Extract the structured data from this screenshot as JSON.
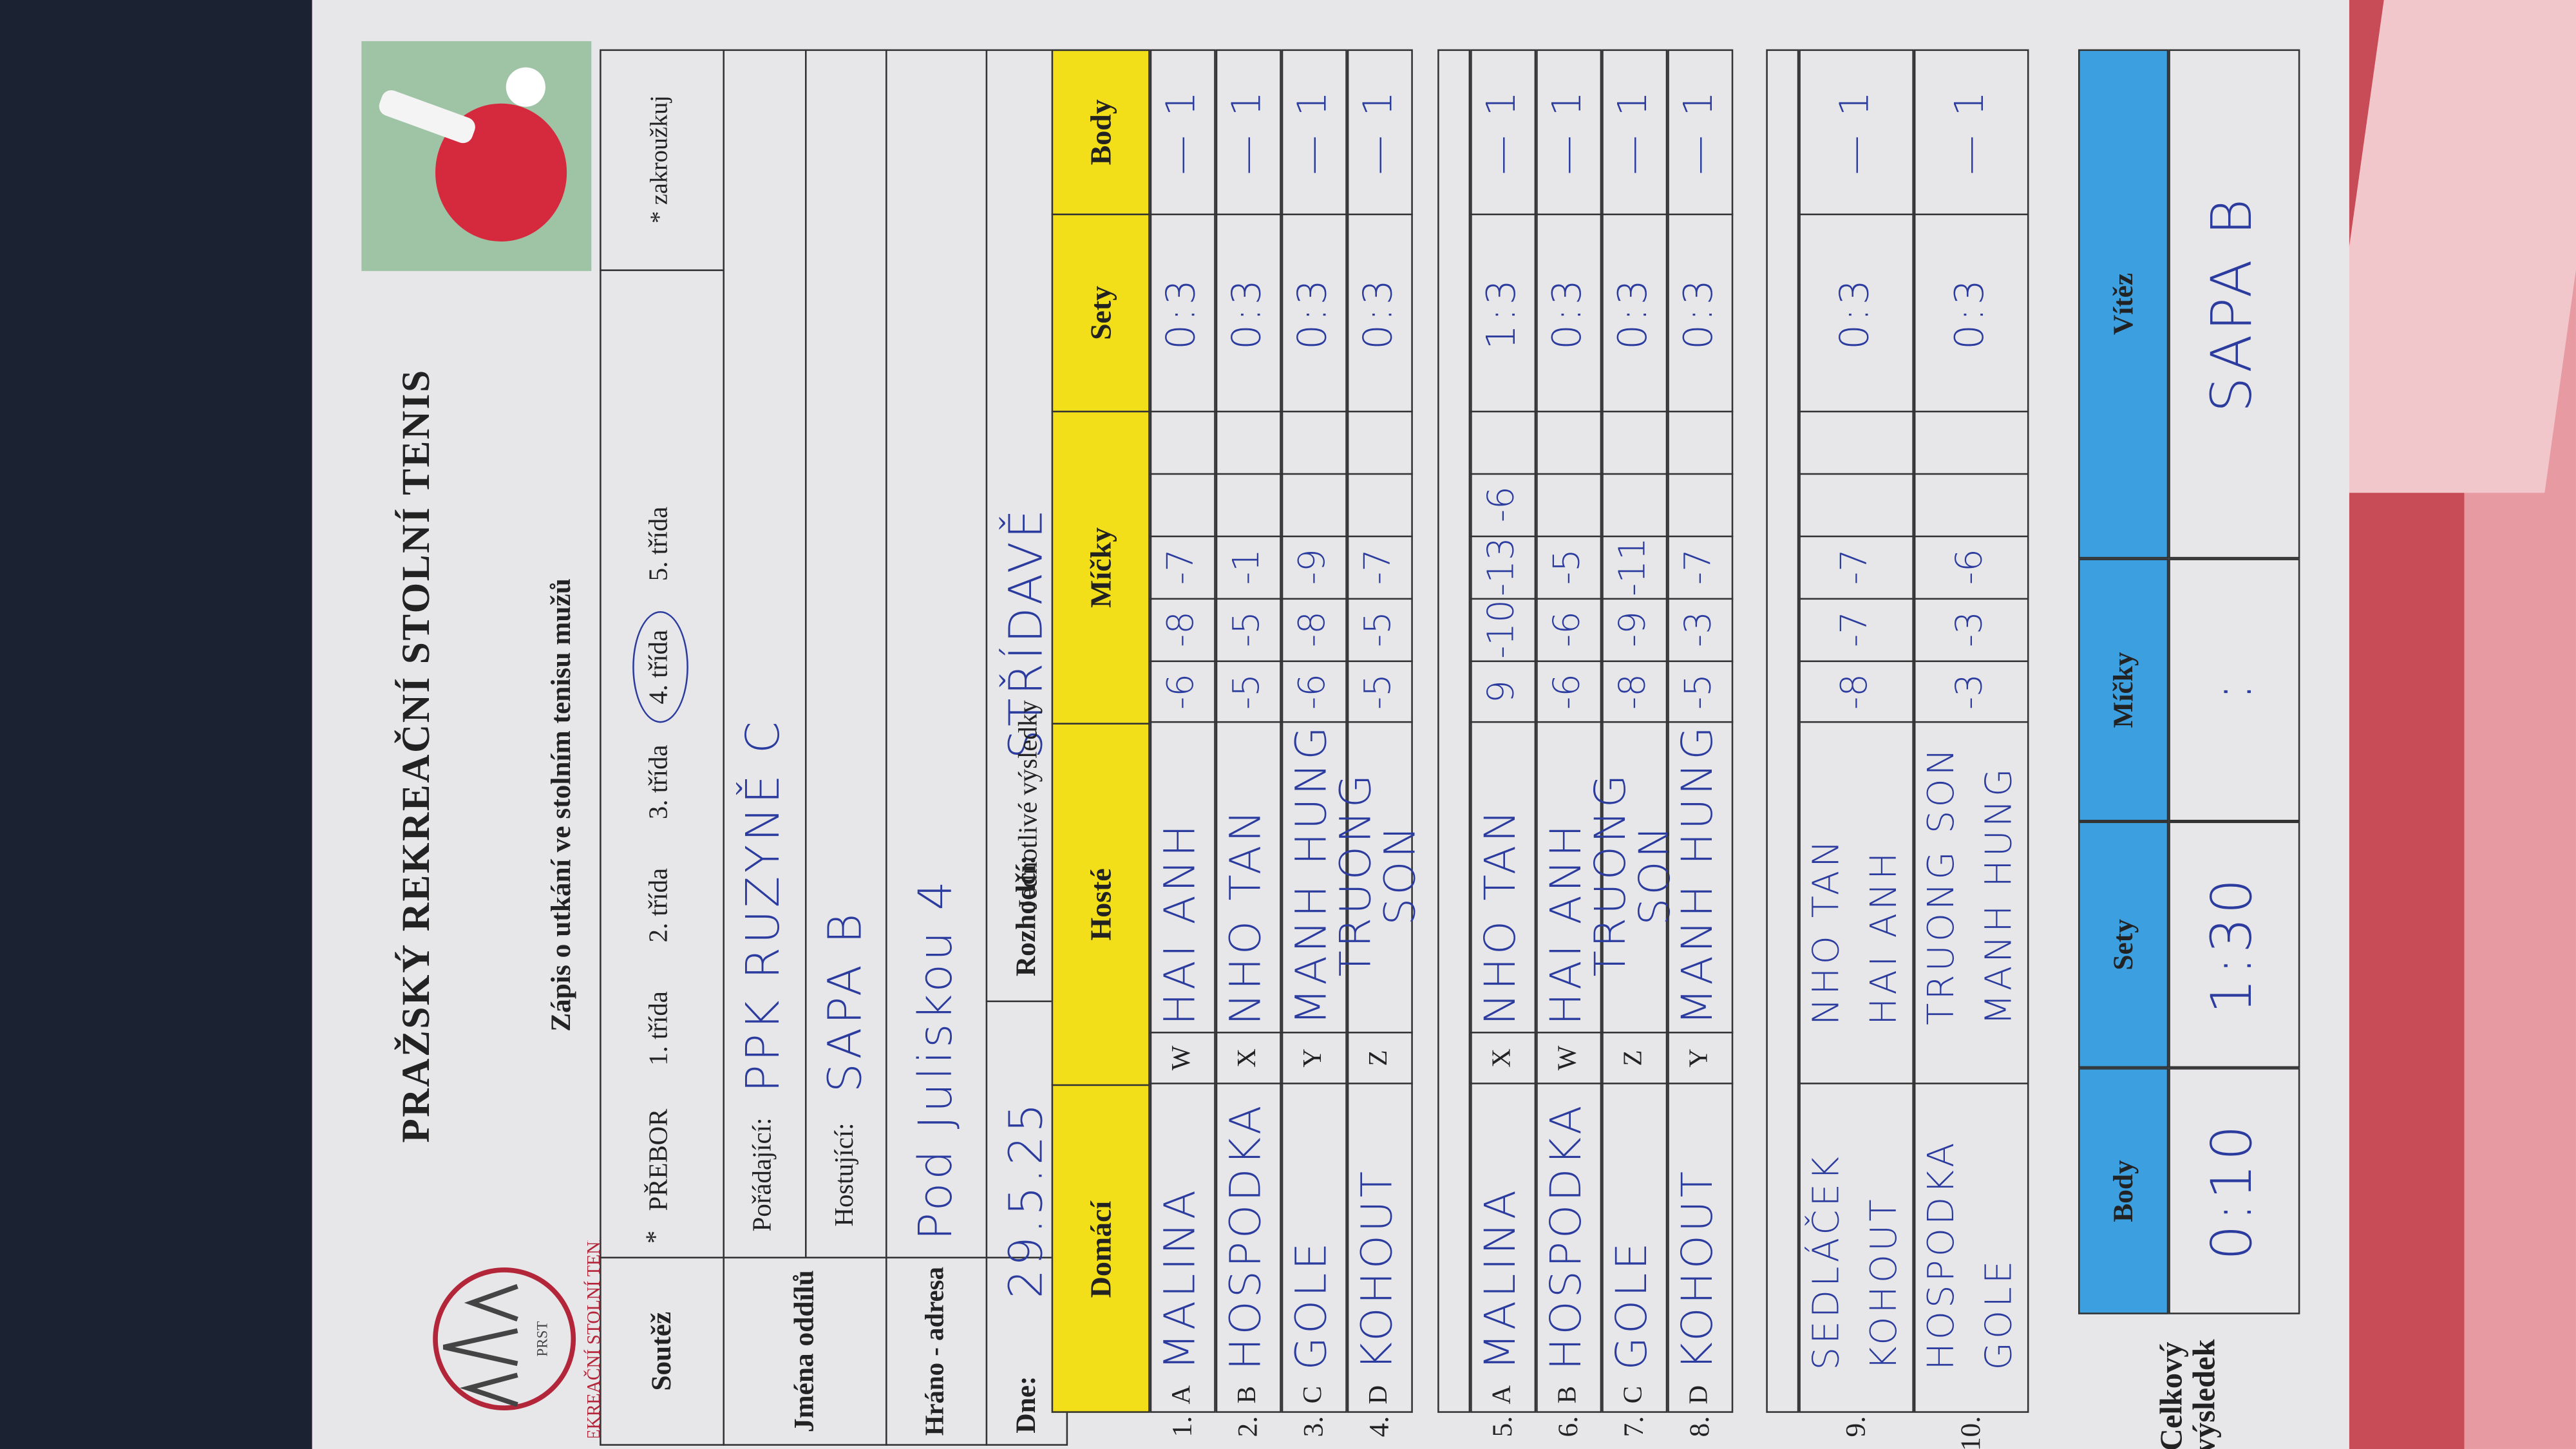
{
  "header": {
    "logo_text": "REKREAČNÍ STOLNÍ TENIS",
    "logo_sub": "PRST",
    "title": "PRAŽSKÝ REKREAČNÍ STOLNÍ TENIS",
    "subtitle": "Zápis o utkání ve stolním tenisu mužů"
  },
  "form": {
    "competition_label": "Soutěž",
    "marker": "*",
    "classes": [
      "PŘEBOR",
      "1. třída",
      "2. třída",
      "3. třída",
      "4. třída",
      "5. třída"
    ],
    "circled": 4,
    "note": "* zakroužkuj",
    "clubs_label": "Jména oddílů",
    "home_label": "Pořádající:",
    "home_club": "PPK RUZYNĚ C",
    "guest_label": "Hostující:",
    "guest_club": "SAPA B",
    "venue_label": "Hráno - adresa",
    "venue": "Pod Juliskou 4",
    "date_label": "Dne:",
    "date": "29.5.25",
    "referee_label": "Rozhodčí:",
    "referee": "STŘÍDAVĚ"
  },
  "results": {
    "title": "Jednotlivé výsledky",
    "columns": [
      "Domácí",
      "Hosté",
      "Míčky",
      "Sety",
      "Body"
    ],
    "blocks": [
      [
        {
          "no": "1.",
          "home_letter": "A",
          "home": [
            "MALINA"
          ],
          "guest_letter": "W",
          "guest": [
            "HAI ANH"
          ],
          "balls": [
            "-6",
            "-8",
            "-7"
          ],
          "sets": "0:3",
          "points": "— 1"
        },
        {
          "no": "2.",
          "home_letter": "B",
          "home": [
            "HOSPODKA"
          ],
          "guest_letter": "X",
          "guest": [
            "NHO TAN"
          ],
          "balls": [
            "-5",
            "-5",
            "-1"
          ],
          "sets": "0:3",
          "points": "— 1"
        },
        {
          "no": "3.",
          "home_letter": "C",
          "home": [
            "GOLE"
          ],
          "guest_letter": "Y",
          "guest": [
            "MANH HUNG"
          ],
          "balls": [
            "-6",
            "-8",
            "-9"
          ],
          "sets": "0:3",
          "points": "— 1"
        },
        {
          "no": "4.",
          "home_letter": "D",
          "home": [
            "KOHOUT"
          ],
          "guest_letter": "Z",
          "guest": [
            "TRUONG SON"
          ],
          "balls": [
            "-5",
            "-5",
            "-7"
          ],
          "sets": "0:3",
          "points": "— 1"
        }
      ],
      [
        {
          "no": "5.",
          "home_letter": "A",
          "home": [
            "MALINA"
          ],
          "guest_letter": "X",
          "guest": [
            "NHO TAN"
          ],
          "balls": [
            "9",
            "-10",
            "-13",
            "-6"
          ],
          "sets": "1:3",
          "points": "— 1"
        },
        {
          "no": "6.",
          "home_letter": "B",
          "home": [
            "HOSPODKA"
          ],
          "guest_letter": "W",
          "guest": [
            "HAI ANH"
          ],
          "balls": [
            "-6",
            "-6",
            "-5"
          ],
          "sets": "0:3",
          "points": "— 1"
        },
        {
          "no": "7.",
          "home_letter": "C",
          "home": [
            "GOLE"
          ],
          "guest_letter": "Z",
          "guest": [
            "TRUONG SON"
          ],
          "balls": [
            "-8",
            "-9",
            "-11"
          ],
          "sets": "0:3",
          "points": "— 1"
        },
        {
          "no": "8.",
          "home_letter": "D",
          "home": [
            "KOHOUT"
          ],
          "guest_letter": "Y",
          "guest": [
            "MANH HUNG"
          ],
          "balls": [
            "-5",
            "-3",
            "-7"
          ],
          "sets": "0:3",
          "points": "— 1"
        }
      ],
      [
        {
          "no": "9.",
          "home": [
            "SEDLÁČEK",
            "KOHOUT"
          ],
          "guest": [
            "NHO TAN",
            "HAI ANH"
          ],
          "balls": [
            "-8",
            "-7",
            "-7"
          ],
          "sets": "0:3",
          "points": "— 1"
        },
        {
          "no": "10.",
          "home": [
            "HOSPODKA",
            "GOLE"
          ],
          "guest": [
            "TRUONG SON",
            "MANH HUNG"
          ],
          "balls": [
            "-3",
            "-3",
            "-6"
          ],
          "sets": "0:3",
          "points": "— 1"
        }
      ]
    ]
  },
  "total": {
    "label": "Celkový výsledek",
    "columns": [
      "Body",
      "Sety",
      "Míčky",
      "Vítěz"
    ],
    "values": [
      "0:10",
      "1:30",
      ":",
      "SAPA B"
    ]
  }
}
